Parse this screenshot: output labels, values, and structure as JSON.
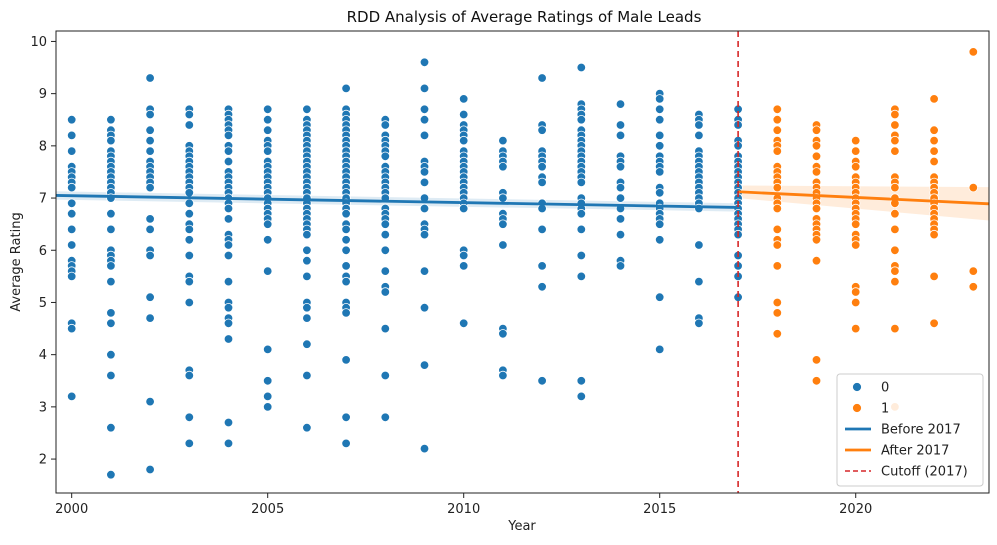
{
  "chart_data": {
    "type": "scatter",
    "title": "RDD Analysis of Average Ratings of Male Leads",
    "xlabel": "Year",
    "ylabel": "Average Rating",
    "xlim": [
      1999.6,
      2023.4
    ],
    "ylim": [
      1.35,
      10.2
    ],
    "xticks": [
      2000,
      2005,
      2010,
      2015,
      2020
    ],
    "yticks": [
      2,
      3,
      4,
      5,
      6,
      7,
      8,
      9,
      10
    ],
    "grid": false,
    "legend_position": "bottom-right",
    "cutoff": {
      "x": 2017,
      "label": "Cutoff (2017)",
      "color": "#d62728"
    },
    "series": [
      {
        "name": "0",
        "color": "#1f77b4",
        "points": {
          "2000": [
            8.5,
            8.2,
            7.9,
            7.6,
            7.5,
            7.4,
            7.3,
            7.2,
            6.9,
            6.7,
            6.4,
            6.1,
            5.8,
            5.7,
            5.6,
            5.5,
            4.6,
            4.5,
            3.2
          ],
          "2001": [
            8.5,
            8.3,
            8.2,
            8.1,
            7.9,
            7.8,
            7.7,
            7.6,
            7.5,
            7.4,
            7.3,
            7.2,
            7.1,
            7.0,
            6.7,
            6.4,
            6.0,
            5.9,
            5.8,
            5.7,
            5.4,
            4.8,
            4.6,
            4.0,
            3.6,
            2.6,
            1.7
          ],
          "2002": [
            9.3,
            8.7,
            8.6,
            8.3,
            8.1,
            7.9,
            7.7,
            7.6,
            7.5,
            7.4,
            7.3,
            7.2,
            6.6,
            6.4,
            6.0,
            5.9,
            5.1,
            4.7,
            3.1,
            1.8
          ],
          "2003": [
            8.7,
            8.6,
            8.4,
            8.0,
            7.9,
            7.8,
            7.7,
            7.6,
            7.5,
            7.4,
            7.3,
            7.2,
            7.1,
            6.9,
            6.7,
            6.5,
            6.4,
            6.2,
            5.9,
            5.5,
            5.4,
            5.0,
            3.7,
            3.6,
            2.8,
            2.3
          ],
          "2004": [
            8.7,
            8.6,
            8.5,
            8.4,
            8.3,
            8.2,
            8.0,
            7.9,
            7.7,
            7.5,
            7.4,
            7.3,
            7.2,
            7.1,
            7.0,
            6.9,
            6.8,
            6.6,
            6.3,
            6.2,
            6.1,
            5.9,
            5.4,
            5.0,
            4.9,
            4.7,
            4.6,
            4.3,
            2.7,
            2.3
          ],
          "2005": [
            8.7,
            8.5,
            8.3,
            8.1,
            8.0,
            7.9,
            7.7,
            7.6,
            7.5,
            7.4,
            7.3,
            7.2,
            7.1,
            7.0,
            6.9,
            6.8,
            6.7,
            6.6,
            6.5,
            6.2,
            5.6,
            4.1,
            3.5,
            3.2,
            3.0
          ],
          "2006": [
            8.7,
            8.5,
            8.4,
            8.3,
            8.2,
            8.1,
            8.0,
            7.9,
            7.8,
            7.7,
            7.6,
            7.5,
            7.4,
            7.3,
            7.2,
            7.1,
            7.0,
            6.9,
            6.8,
            6.7,
            6.6,
            6.5,
            6.4,
            6.3,
            6.0,
            5.8,
            5.5,
            5.0,
            4.9,
            4.7,
            4.2,
            3.6,
            2.6
          ],
          "2007": [
            9.1,
            8.7,
            8.6,
            8.5,
            8.4,
            8.3,
            8.2,
            8.1,
            8.0,
            7.9,
            7.8,
            7.7,
            7.6,
            7.5,
            7.4,
            7.3,
            7.2,
            7.1,
            7.0,
            6.9,
            6.8,
            6.7,
            6.5,
            6.4,
            6.2,
            6.0,
            5.7,
            5.5,
            5.4,
            5.0,
            4.9,
            4.8,
            3.9,
            2.8,
            2.3
          ],
          "2008": [
            8.5,
            8.4,
            8.2,
            8.1,
            8.0,
            7.9,
            7.8,
            7.6,
            7.5,
            7.4,
            7.3,
            7.2,
            7.1,
            7.0,
            6.8,
            6.7,
            6.6,
            6.5,
            6.3,
            6.0,
            5.6,
            5.3,
            5.2,
            4.5,
            3.6,
            2.8
          ],
          "2009": [
            9.6,
            9.1,
            8.7,
            8.5,
            8.2,
            7.7,
            7.6,
            7.5,
            7.3,
            7.0,
            6.8,
            6.5,
            6.4,
            6.3,
            5.6,
            4.9,
            3.8,
            2.2
          ],
          "2010": [
            8.9,
            8.6,
            8.4,
            8.3,
            8.2,
            8.1,
            7.9,
            7.8,
            7.7,
            7.6,
            7.5,
            7.4,
            7.3,
            7.2,
            7.1,
            7.0,
            6.9,
            6.8,
            6.0,
            5.9,
            5.7,
            4.6
          ],
          "2011": [
            8.1,
            7.9,
            7.8,
            7.7,
            7.6,
            7.1,
            7.0,
            6.7,
            6.6,
            6.5,
            6.1,
            4.5,
            4.4,
            3.7,
            3.6
          ],
          "2012": [
            9.3,
            8.4,
            8.3,
            7.9,
            7.8,
            7.7,
            7.6,
            7.4,
            7.3,
            6.9,
            6.8,
            6.4,
            5.7,
            5.3,
            3.5
          ],
          "2013": [
            9.5,
            8.8,
            8.7,
            8.6,
            8.5,
            8.3,
            8.2,
            8.1,
            8.0,
            7.9,
            7.8,
            7.7,
            7.6,
            7.5,
            7.4,
            7.3,
            7.0,
            6.9,
            6.8,
            6.7,
            6.4,
            5.9,
            5.5,
            3.5,
            3.2
          ],
          "2014": [
            8.8,
            8.4,
            8.2,
            7.8,
            7.7,
            7.6,
            7.3,
            7.2,
            7.0,
            6.8,
            6.6,
            6.3,
            5.8,
            5.7
          ],
          "2015": [
            9.0,
            8.9,
            8.7,
            8.5,
            8.2,
            8.0,
            7.8,
            7.7,
            7.6,
            7.5,
            7.2,
            7.1,
            6.9,
            6.8,
            6.7,
            6.6,
            6.5,
            6.2,
            5.1,
            4.1
          ],
          "2016": [
            8.6,
            8.5,
            8.4,
            8.2,
            7.9,
            7.8,
            7.7,
            7.6,
            7.5,
            7.4,
            7.3,
            7.2,
            7.1,
            7.0,
            6.9,
            6.8,
            6.1,
            5.4,
            4.7,
            4.6
          ],
          "2017": [
            8.7,
            8.5,
            8.4,
            8.1,
            8.0,
            7.8,
            7.7,
            7.6,
            7.5,
            7.4,
            7.3,
            7.2,
            7.1,
            7.0,
            6.9,
            6.8,
            6.7,
            6.6,
            6.5,
            6.4,
            6.3,
            5.9,
            5.7,
            5.5,
            5.1
          ]
        }
      },
      {
        "name": "1",
        "color": "#ff7f0e",
        "points": {
          "2018": [
            8.7,
            8.5,
            8.3,
            8.1,
            8.0,
            7.9,
            7.6,
            7.5,
            7.4,
            7.3,
            7.2,
            7.0,
            6.9,
            6.8,
            6.4,
            6.2,
            6.1,
            5.7,
            5.0,
            4.8,
            4.4
          ],
          "2019": [
            8.4,
            8.3,
            8.1,
            8.0,
            7.8,
            7.6,
            7.5,
            7.3,
            7.2,
            7.1,
            7.0,
            6.9,
            6.8,
            6.6,
            6.5,
            6.4,
            6.3,
            6.2,
            5.8,
            3.9,
            3.5
          ],
          "2020": [
            8.1,
            7.9,
            7.7,
            7.6,
            7.4,
            7.3,
            7.2,
            7.1,
            7.0,
            6.9,
            6.8,
            6.7,
            6.6,
            6.5,
            6.3,
            6.2,
            6.1,
            5.3,
            5.2,
            5.0,
            4.5
          ],
          "2021": [
            8.7,
            8.6,
            8.4,
            8.2,
            8.1,
            7.9,
            7.4,
            7.3,
            7.2,
            7.0,
            6.9,
            6.7,
            6.4,
            6.0,
            5.7,
            5.6,
            5.4,
            4.5,
            3.0
          ],
          "2022": [
            8.9,
            8.3,
            8.1,
            7.9,
            7.7,
            7.4,
            7.3,
            7.2,
            7.1,
            7.0,
            6.9,
            6.8,
            6.7,
            6.6,
            6.5,
            6.4,
            6.3,
            5.5,
            4.6
          ],
          "2023": [
            9.8,
            7.2,
            5.6,
            5.3
          ]
        }
      }
    ],
    "fits": [
      {
        "name": "Before 2017",
        "color": "#1f77b4",
        "x": [
          1999.6,
          2017
        ],
        "y": [
          7.05,
          6.82
        ],
        "ci": 0.08
      },
      {
        "name": "After 2017",
        "color": "#ff7f0e",
        "x": [
          2017,
          2023.4
        ],
        "y": [
          7.12,
          6.89
        ],
        "ci_start": 0.12,
        "ci_end": 0.32
      }
    ],
    "legend": [
      {
        "label": "0",
        "kind": "marker",
        "color": "#1f77b4"
      },
      {
        "label": "1",
        "kind": "marker",
        "color": "#ff7f0e"
      },
      {
        "label": "Before 2017",
        "kind": "line",
        "color": "#1f77b4"
      },
      {
        "label": "After 2017",
        "kind": "line",
        "color": "#ff7f0e"
      },
      {
        "label": "Cutoff (2017)",
        "kind": "dashed",
        "color": "#d62728"
      }
    ]
  }
}
